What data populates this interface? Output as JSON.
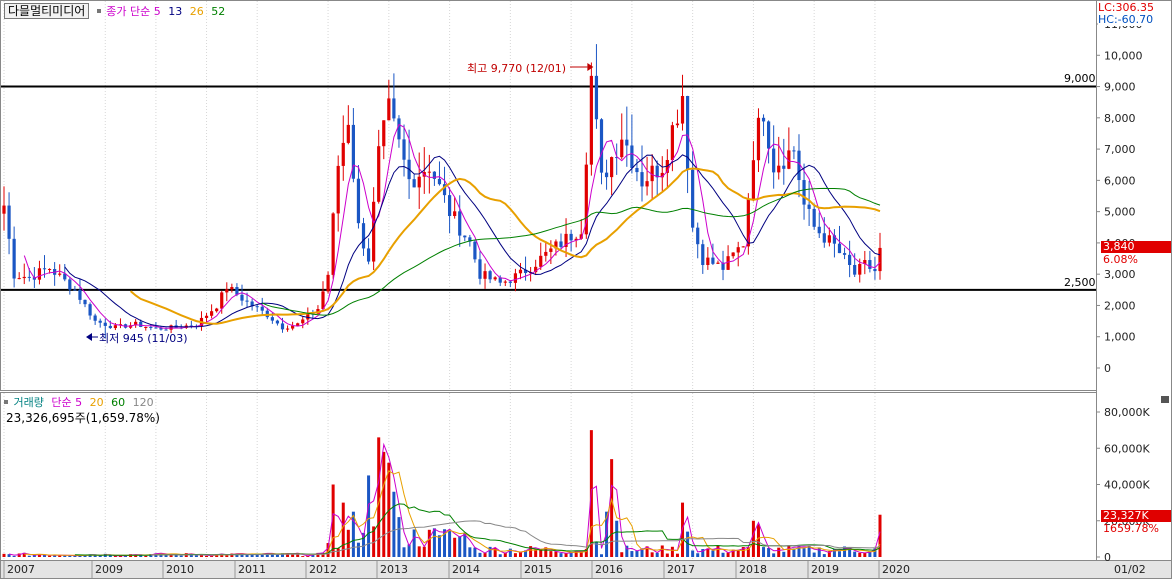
{
  "header": {
    "stock_name": "다믈멀티미디어",
    "price_legend_label": "종가 단순",
    "price_ma_periods": [
      "5",
      "13",
      "26",
      "52"
    ],
    "price_ma_colors": [
      "#cc00cc",
      "#000080",
      "#e8a000",
      "#008000"
    ],
    "lc_label": "LC:306.35",
    "hc_label": "HC:-60.70"
  },
  "volume_header": {
    "legend_label": "거래량",
    "ma_label": "단순",
    "ma_periods": [
      "5",
      "20",
      "60",
      "120"
    ],
    "ma_colors": [
      "#cc00cc",
      "#e8a000",
      "#008000",
      "#888888"
    ],
    "summary": "23,326,695주(1,659.78%)"
  },
  "annotations": {
    "high_label": "최고 9,770 (12/01)",
    "low_label": "최저 945 (11/03)",
    "line_9000_label": "9,000",
    "line_2500_label": "2,500"
  },
  "tags": {
    "price_current": "3,840",
    "price_change": "6.08%",
    "volume_current": "23,327K",
    "volume_change": "1659.78%"
  },
  "x_axis_end_label": "01/02",
  "chart_data": [
    {
      "type": "candlestick",
      "period": "monthly",
      "x_ticks": [
        "2007",
        "2009",
        "2010",
        "2011",
        "2012",
        "2013",
        "2014",
        "2015",
        "2016",
        "2017",
        "2018",
        "2019",
        "2020"
      ],
      "y_ticks": [
        "0",
        "1,000",
        "2,000",
        "3,000",
        "4,000",
        "5,000",
        "6,000",
        "7,000",
        "8,000",
        "9,000",
        "10,000",
        "11,000"
      ],
      "ylim": [
        0,
        11000
      ],
      "horizontal_lines": [
        9000,
        2500
      ],
      "high": {
        "value": 9770,
        "date": "12/01"
      },
      "low": {
        "value": 945,
        "date": "11/03"
      },
      "last_close": 3840,
      "change_pct": 6.08,
      "anchor_closes": [
        [
          0,
          5200
        ],
        [
          2,
          3000
        ],
        [
          5,
          2900
        ],
        [
          9,
          3200
        ],
        [
          14,
          2500
        ],
        [
          18,
          1500
        ],
        [
          22,
          1300
        ],
        [
          26,
          1400
        ],
        [
          30,
          1250
        ],
        [
          34,
          1300
        ],
        [
          38,
          1400
        ],
        [
          42,
          2000
        ],
        [
          44,
          2600
        ],
        [
          48,
          2100
        ],
        [
          52,
          1700
        ],
        [
          55,
          1300
        ],
        [
          58,
          1400
        ],
        [
          62,
          1900
        ],
        [
          64,
          3000
        ],
        [
          66,
          6500
        ],
        [
          68,
          8000
        ],
        [
          70,
          4500
        ],
        [
          72,
          3500
        ],
        [
          74,
          6800
        ],
        [
          76,
          8200
        ],
        [
          80,
          6000
        ],
        [
          84,
          6500
        ],
        [
          88,
          5000
        ],
        [
          92,
          4000
        ],
        [
          94,
          3000
        ],
        [
          98,
          2700
        ],
        [
          102,
          3000
        ],
        [
          106,
          3500
        ],
        [
          110,
          4000
        ],
        [
          114,
          4500
        ],
        [
          116,
          9300
        ],
        [
          118,
          6000
        ],
        [
          122,
          7500
        ],
        [
          126,
          6000
        ],
        [
          130,
          6500
        ],
        [
          134,
          8800
        ],
        [
          136,
          4500
        ],
        [
          138,
          3500
        ],
        [
          142,
          3200
        ],
        [
          146,
          4000
        ],
        [
          148,
          7000
        ],
        [
          150,
          8300
        ],
        [
          152,
          6500
        ],
        [
          156,
          7000
        ],
        [
          158,
          5200
        ],
        [
          160,
          4500
        ],
        [
          164,
          3900
        ],
        [
          168,
          3000
        ],
        [
          170,
          3300
        ],
        [
          172,
          3100
        ],
        [
          173,
          3840
        ]
      ],
      "series": [
        {
          "name": "5",
          "color": "#cc00cc"
        },
        {
          "name": "13",
          "color": "#000080"
        },
        {
          "name": "26",
          "color": "#e8a000"
        },
        {
          "name": "52",
          "color": "#008000"
        }
      ]
    },
    {
      "type": "bar",
      "title": "거래량",
      "y_ticks": [
        "0",
        "20,000K",
        "40,000K",
        "60,000K",
        "80,000K"
      ],
      "ylim": [
        0,
        90000
      ],
      "last_volume": 23326695,
      "change_pct": 1659.78,
      "spikes_k": [
        [
          65,
          40000
        ],
        [
          67,
          30000
        ],
        [
          69,
          25000
        ],
        [
          72,
          45000
        ],
        [
          74,
          66000
        ],
        [
          75,
          58000
        ],
        [
          76,
          52000
        ],
        [
          77,
          36000
        ],
        [
          78,
          22000
        ],
        [
          84,
          15000
        ],
        [
          86,
          12000
        ],
        [
          116,
          70000
        ],
        [
          117,
          8000
        ],
        [
          119,
          25000
        ],
        [
          120,
          54000
        ],
        [
          121,
          20000
        ],
        [
          134,
          30000
        ],
        [
          135,
          14000
        ],
        [
          148,
          20000
        ],
        [
          149,
          18000
        ],
        [
          173,
          23327
        ]
      ],
      "series": [
        {
          "name": "5",
          "color": "#cc00cc"
        },
        {
          "name": "20",
          "color": "#e8a000"
        },
        {
          "name": "60",
          "color": "#008000"
        },
        {
          "name": "120",
          "color": "#888888"
        }
      ]
    }
  ]
}
